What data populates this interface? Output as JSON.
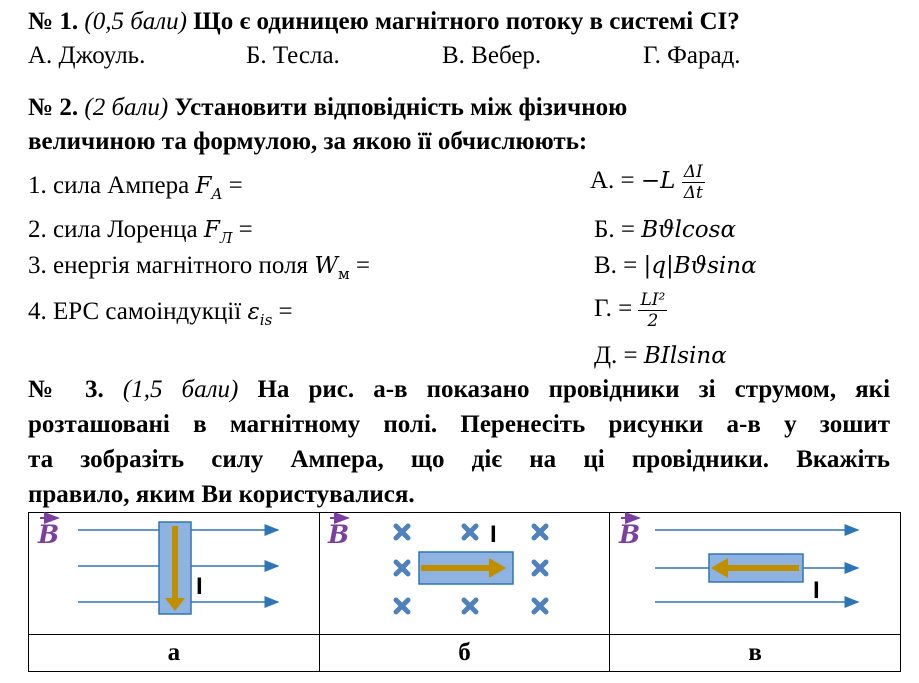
{
  "q1": {
    "number": "№ 1.",
    "points": "(0,5 бали)",
    "question": "Що є одиницею магнітного потоку в системі СІ?",
    "options": [
      "А. Джоуль.",
      "Б. Тесла.",
      "В. Вебер.",
      "Г. Фарад."
    ]
  },
  "q2": {
    "number": "№ 2.",
    "points": "(2 бали)",
    "question_line1": "Установити відповідність між фізичною",
    "question_line2": "величиною та формулою, за якою її обчислюють:",
    "items": [
      {
        "text": "1. сила Ампера ",
        "formula": "F",
        "sub": "A",
        "eq": " ="
      },
      {
        "text": "2. сила Лоренца ",
        "formula": "F",
        "sub": "Л",
        "eq": " ="
      },
      {
        "text": "3. енергія магнітного поля ",
        "formula": "W",
        "sub": "м",
        "eq": " ="
      },
      {
        "text": "4. ЕРС самоіндукції ",
        "formula": "ε",
        "sub": "is",
        "eq": " ="
      }
    ],
    "answers": {
      "a_label": "А. = ",
      "a_prefix": "−L",
      "a_num": "ΔI",
      "a_den": "Δt",
      "b_label": "Б. = ",
      "b_formula": "Bϑlcosα",
      "c_label": "В. = ",
      "c_formula": "|q|Bϑsinα",
      "d_label": "Г. = ",
      "d_num": "LI²",
      "d_den": "2",
      "e_label": "Д. = ",
      "e_formula": "BIlsinα"
    }
  },
  "q3": {
    "number": "№ 3.",
    "points": "(1,5 бали)",
    "line1": "На рис. а-в показано провідники зі струмом, які",
    "line2": "розташовані в магнітному полі. Перенесіть рисунки а-в у зошит",
    "line3": "та зобразіть силу Ампера, що діє на ці провідники. Вкажіть",
    "line4": "правило, яким Ви користувалися."
  },
  "figure": {
    "field_label": "B",
    "current_label": "I",
    "captions": [
      "а",
      "б",
      "в"
    ],
    "colors": {
      "field": "#7a3fa0",
      "lines": "#2e75b6",
      "conductor": "#8fb3e0",
      "current": "#bf8f00",
      "cross": "#4f81bd"
    }
  }
}
